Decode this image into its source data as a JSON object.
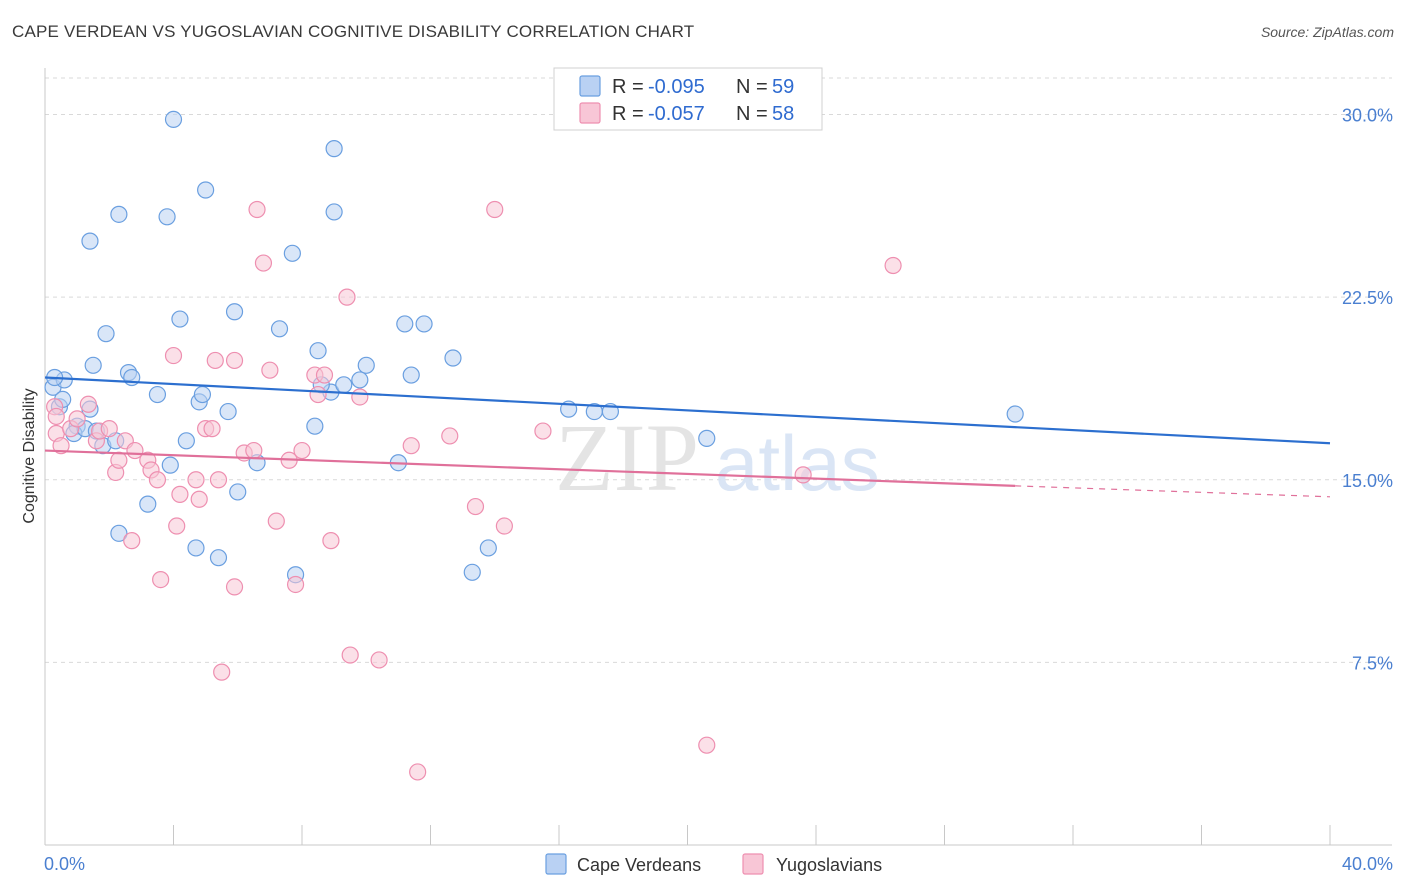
{
  "title": "CAPE VERDEAN VS YUGOSLAVIAN COGNITIVE DISABILITY CORRELATION CHART",
  "source": "Source: ZipAtlas.com",
  "watermark": {
    "zip": "ZIP",
    "atlas": "atlas"
  },
  "colors": {
    "blue": "#6a9fe0",
    "blue_fill": "#b9d1f3",
    "blue_line": "#2c6fcf",
    "pink": "#ee8fb0",
    "pink_fill": "#f8c6d6",
    "pink_line": "#e0709a",
    "axis_text": "#4a7fd0",
    "grid": "#d9d9d9"
  },
  "legend": {
    "r_label": "R =",
    "n_label": "N =",
    "items": [
      {
        "r": "-0.095",
        "n": "59"
      },
      {
        "r": "-0.057",
        "n": "58"
      }
    ]
  },
  "bottom_legend": [
    "Cape Verdeans",
    "Yugoslavians"
  ],
  "chart_data": {
    "type": "scatter",
    "title": "CAPE VERDEAN VS YUGOSLAVIAN COGNITIVE DISABILITY CORRELATION CHART",
    "xlabel": "",
    "ylabel": "Cognitive Disability",
    "xlim": [
      0,
      40
    ],
    "ylim": [
      0,
      31.5
    ],
    "x_tick_labels": [
      "0.0%",
      "40.0%"
    ],
    "y_ticks": [
      7.5,
      15.0,
      22.5,
      30.0
    ],
    "y_tick_labels": [
      "7.5%",
      "15.0%",
      "22.5%",
      "30.0%"
    ],
    "grid": "horizontal dashed",
    "legend_position": "top-center",
    "series": [
      {
        "name": "Cape Verdeans",
        "points": [
          [
            0.25,
            18.8
          ],
          [
            0.45,
            18.0
          ],
          [
            0.6,
            19.1
          ],
          [
            0.3,
            19.2
          ],
          [
            0.55,
            18.3
          ],
          [
            1.0,
            17.2
          ],
          [
            1.4,
            17.9
          ],
          [
            0.9,
            16.9
          ],
          [
            1.25,
            17.1
          ],
          [
            1.6,
            17.0
          ],
          [
            1.8,
            16.4
          ],
          [
            2.2,
            16.6
          ],
          [
            1.5,
            19.7
          ],
          [
            1.9,
            21.0
          ],
          [
            2.6,
            19.4
          ],
          [
            2.7,
            19.2
          ],
          [
            3.5,
            18.5
          ],
          [
            4.4,
            16.6
          ],
          [
            4.8,
            18.2
          ],
          [
            4.9,
            18.5
          ],
          [
            5.7,
            17.8
          ],
          [
            2.3,
            12.8
          ],
          [
            3.2,
            14.0
          ],
          [
            3.9,
            15.6
          ],
          [
            4.7,
            12.2
          ],
          [
            5.4,
            11.8
          ],
          [
            6.0,
            14.5
          ],
          [
            6.6,
            15.7
          ],
          [
            1.4,
            24.8
          ],
          [
            2.3,
            25.9
          ],
          [
            3.8,
            25.8
          ],
          [
            4.0,
            29.8
          ],
          [
            5.0,
            26.9
          ],
          [
            5.9,
            21.9
          ],
          [
            7.7,
            24.3
          ],
          [
            4.2,
            21.6
          ],
          [
            7.3,
            21.2
          ],
          [
            8.5,
            20.3
          ],
          [
            8.9,
            18.6
          ],
          [
            9.3,
            18.9
          ],
          [
            9.8,
            19.1
          ],
          [
            10.0,
            19.7
          ],
          [
            8.6,
            18.9
          ],
          [
            8.4,
            17.2
          ],
          [
            9.0,
            28.6
          ],
          [
            9.0,
            26.0
          ],
          [
            11.4,
            19.3
          ],
          [
            11.2,
            21.4
          ],
          [
            11.8,
            21.4
          ],
          [
            12.7,
            20.0
          ],
          [
            11.0,
            15.7
          ],
          [
            13.8,
            12.2
          ],
          [
            13.3,
            11.2
          ],
          [
            7.8,
            11.1
          ],
          [
            16.3,
            17.9
          ],
          [
            17.1,
            17.8
          ],
          [
            17.6,
            17.8
          ],
          [
            20.6,
            16.7
          ],
          [
            30.2,
            17.7
          ]
        ]
      },
      {
        "name": "Yugoslavians",
        "points": [
          [
            0.3,
            18.0
          ],
          [
            0.35,
            16.9
          ],
          [
            0.5,
            16.4
          ],
          [
            0.8,
            17.1
          ],
          [
            1.0,
            17.5
          ],
          [
            1.35,
            18.1
          ],
          [
            1.6,
            16.6
          ],
          [
            1.7,
            17.0
          ],
          [
            2.2,
            15.3
          ],
          [
            2.3,
            15.8
          ],
          [
            2.5,
            16.6
          ],
          [
            2.8,
            16.2
          ],
          [
            2.7,
            12.5
          ],
          [
            3.2,
            15.8
          ],
          [
            3.3,
            15.4
          ],
          [
            3.5,
            15.0
          ],
          [
            3.6,
            10.9
          ],
          [
            4.0,
            20.1
          ],
          [
            4.1,
            13.1
          ],
          [
            4.2,
            14.4
          ],
          [
            4.7,
            15.0
          ],
          [
            4.8,
            14.2
          ],
          [
            5.0,
            17.1
          ],
          [
            5.2,
            17.1
          ],
          [
            5.3,
            19.9
          ],
          [
            5.4,
            15.0
          ],
          [
            5.5,
            7.1
          ],
          [
            5.9,
            19.9
          ],
          [
            5.9,
            10.6
          ],
          [
            6.2,
            16.1
          ],
          [
            6.5,
            16.2
          ],
          [
            6.6,
            26.1
          ],
          [
            6.8,
            23.9
          ],
          [
            7.0,
            19.5
          ],
          [
            7.2,
            13.3
          ],
          [
            7.6,
            15.8
          ],
          [
            7.8,
            10.7
          ],
          [
            8.0,
            16.2
          ],
          [
            8.4,
            19.3
          ],
          [
            8.5,
            18.5
          ],
          [
            8.7,
            19.3
          ],
          [
            8.9,
            12.5
          ],
          [
            9.4,
            22.5
          ],
          [
            9.8,
            18.4
          ],
          [
            9.5,
            7.8
          ],
          [
            10.4,
            7.6
          ],
          [
            11.4,
            16.4
          ],
          [
            11.6,
            3.0
          ],
          [
            12.6,
            16.8
          ],
          [
            13.4,
            13.9
          ],
          [
            14.0,
            26.1
          ],
          [
            14.3,
            13.1
          ],
          [
            15.5,
            17.0
          ],
          [
            20.6,
            4.1
          ],
          [
            23.6,
            15.2
          ],
          [
            26.4,
            23.8
          ],
          [
            0.35,
            17.6
          ],
          [
            2.0,
            17.1
          ]
        ]
      }
    ],
    "trend_lines": [
      {
        "series": "Cape Verdeans",
        "x": [
          0,
          40
        ],
        "y": [
          19.2,
          16.5
        ],
        "style": "solid"
      },
      {
        "series": "Yugoslavians",
        "x": [
          0,
          30.2
        ],
        "y": [
          16.2,
          14.75
        ],
        "style": "solid",
        "dashed_extension_to": [
          40,
          14.3
        ]
      }
    ]
  }
}
